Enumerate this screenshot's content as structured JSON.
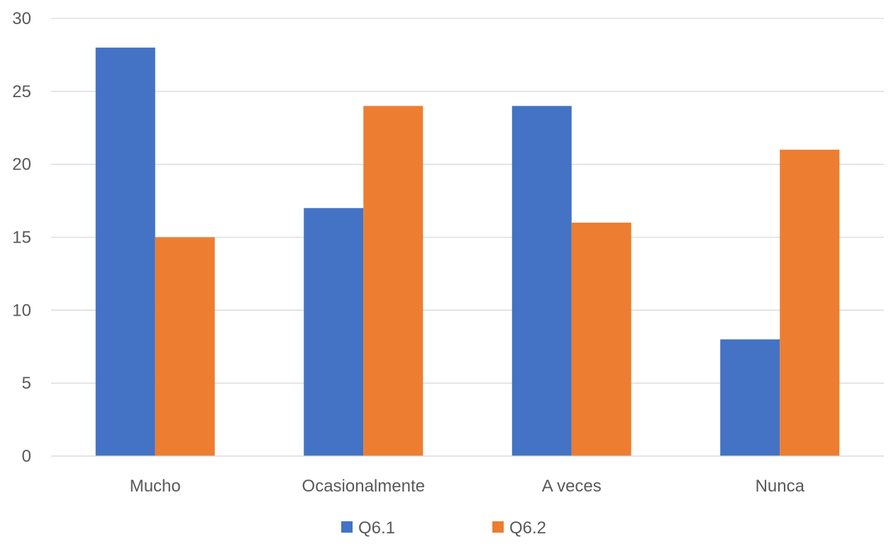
{
  "chart_data": {
    "type": "bar",
    "categories": [
      "Mucho",
      "Ocasionalmente",
      "A veces",
      "Nunca"
    ],
    "series": [
      {
        "name": "Q6.1",
        "values": [
          28,
          17,
          24,
          8
        ],
        "color": "#4472C4"
      },
      {
        "name": "Q6.2",
        "values": [
          15,
          24,
          16,
          21
        ],
        "color": "#ED7D31"
      }
    ],
    "y_ticks": [
      "0",
      "5",
      "10",
      "15",
      "20",
      "25",
      "30"
    ],
    "ylim": [
      0,
      30
    ],
    "grid": true,
    "legend_position": "bottom",
    "title": "",
    "xlabel": "",
    "ylabel": ""
  }
}
